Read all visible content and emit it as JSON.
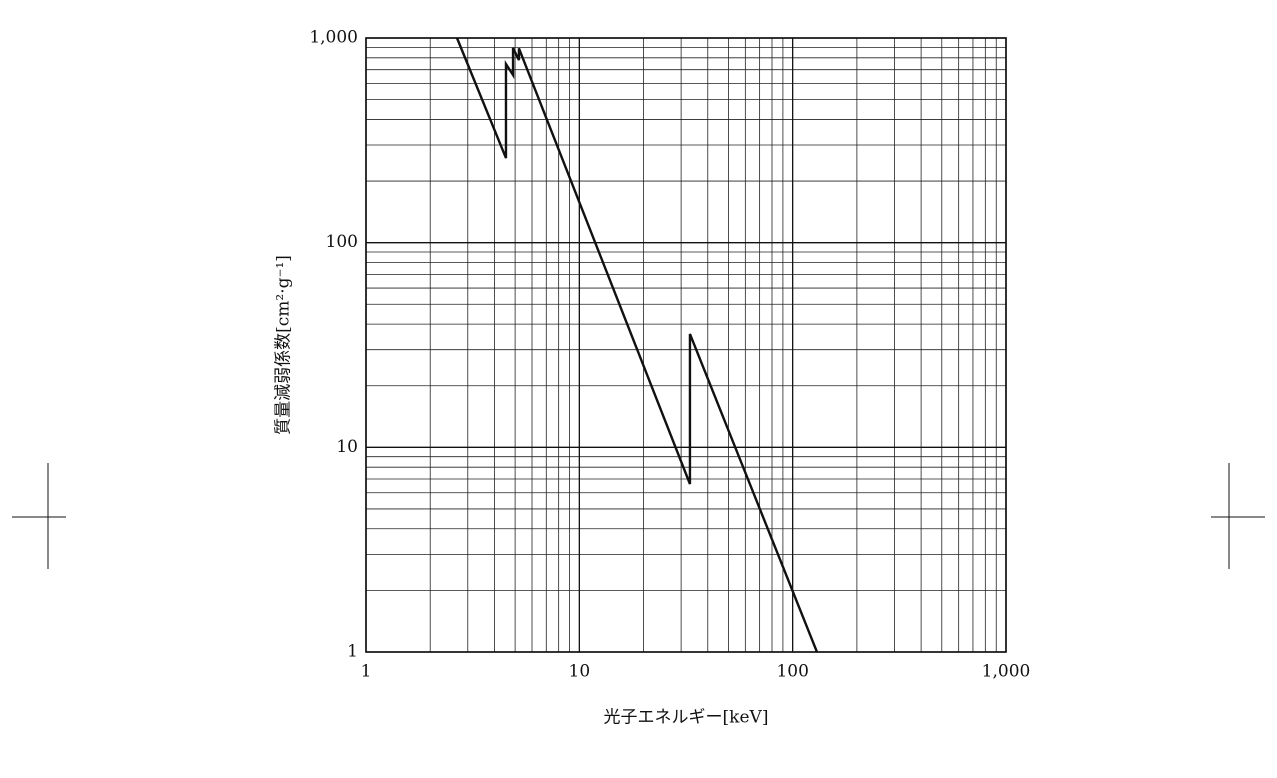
{
  "chart_data": {
    "type": "line",
    "xlabel": "光子エネルギー[keV]",
    "ylabel": "質量減弱係数[cm²·g⁻¹]",
    "x": [
      2.67,
      4.53,
      4.53,
      4.89,
      4.89,
      5.21,
      5.21,
      33.0,
      33.0,
      130
    ],
    "series": [
      {
        "color": "#111111",
        "values": [
          1000,
          259,
          746,
          659,
          893,
          780,
          890,
          6.62,
          35.8,
          1
        ]
      }
    ],
    "xlim": [
      1,
      1000
    ],
    "ylim": [
      1,
      1000
    ],
    "xticks": [
      1,
      10,
      100,
      {
        "value": 1000,
        "label": "1,000"
      }
    ],
    "yticks": [
      1,
      10,
      100,
      {
        "value": 1000,
        "label": "1,000"
      }
    ],
    "xscale": "log",
    "yscale": "log",
    "grid": true,
    "minor_grid": true
  }
}
